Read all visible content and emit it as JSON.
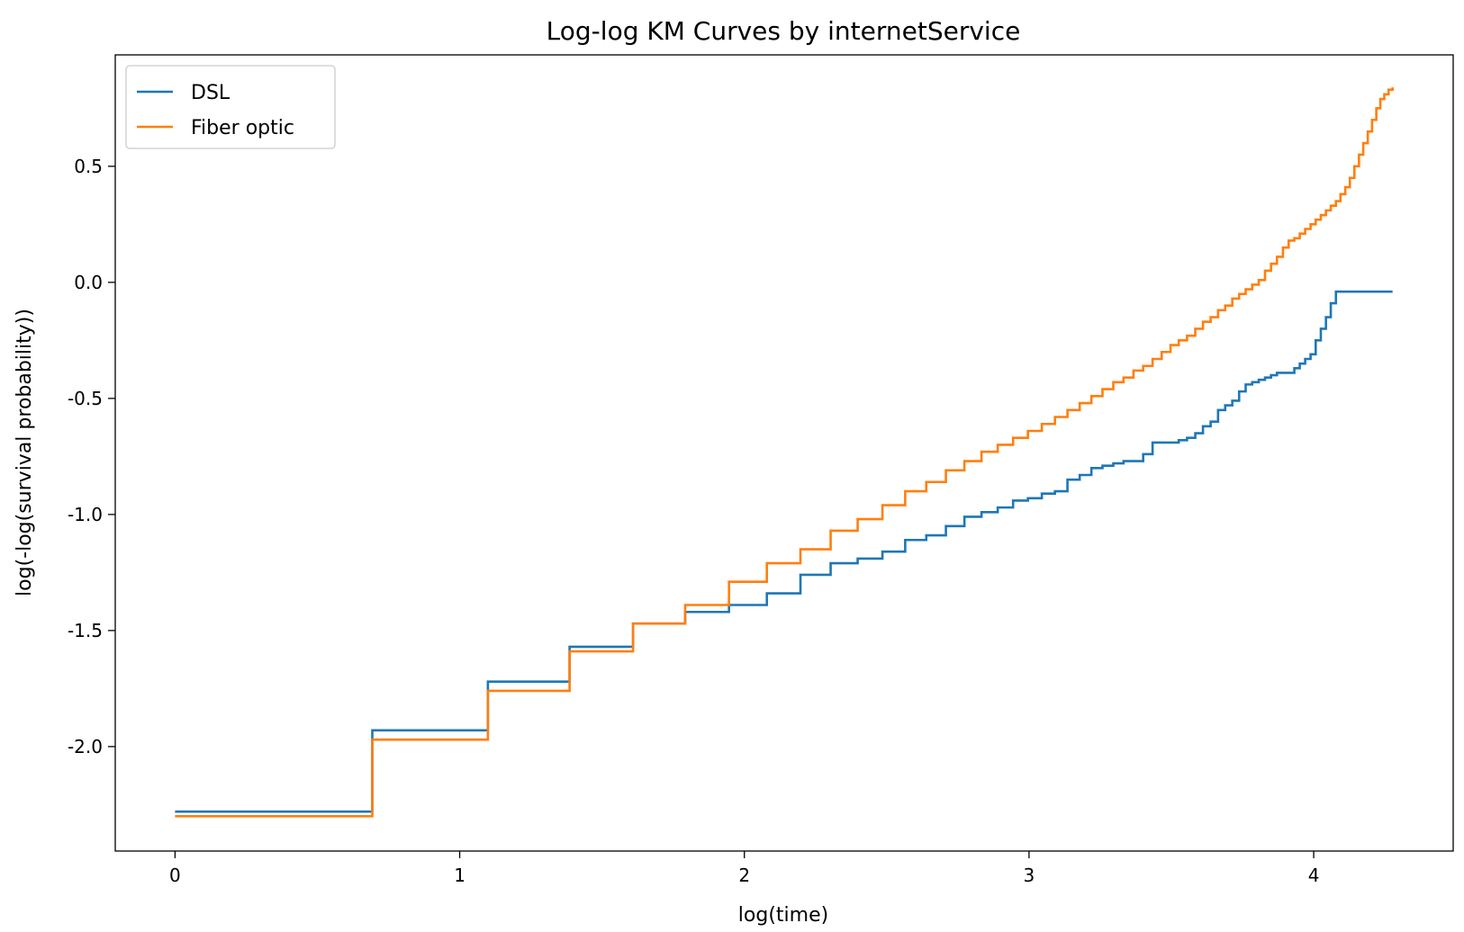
{
  "chart_data": {
    "type": "line",
    "step": "post",
    "title": "Log-log KM Curves by internetService",
    "xlabel": "log(time)",
    "ylabel": "log(-log(survival probability))",
    "xlim": [
      -0.21,
      4.49
    ],
    "ylim": [
      -2.45,
      0.98
    ],
    "x_ticks": [
      0,
      1,
      2,
      3,
      4
    ],
    "x_tick_labels": [
      "0",
      "1",
      "2",
      "3",
      "4"
    ],
    "y_ticks": [
      -2.0,
      -1.5,
      -1.0,
      -0.5,
      0.0,
      0.5
    ],
    "y_tick_labels": [
      "-2.0",
      "-1.5",
      "-1.0",
      "-0.5",
      "0.0",
      "0.5"
    ],
    "grid": false,
    "legend_position": "upper-left",
    "series": [
      {
        "name": "DSL",
        "color": "#1f77b4",
        "x": [
          0,
          0.693,
          1.099,
          1.386,
          1.609,
          1.792,
          1.946,
          2.079,
          2.197,
          2.303,
          2.398,
          2.485,
          2.565,
          2.639,
          2.708,
          2.773,
          2.833,
          2.89,
          2.944,
          2.996,
          3.045,
          3.091,
          3.135,
          3.178,
          3.219,
          3.258,
          3.296,
          3.332,
          3.367,
          3.401,
          3.434,
          3.466,
          3.497,
          3.526,
          3.555,
          3.584,
          3.611,
          3.638,
          3.664,
          3.689,
          3.714,
          3.738,
          3.761,
          3.784,
          3.807,
          3.829,
          3.85,
          3.871,
          3.892,
          3.912,
          3.932,
          3.951,
          3.97,
          3.989,
          4.007,
          4.025,
          4.043,
          4.06,
          4.078,
          4.094,
          4.111,
          4.127,
          4.143,
          4.159,
          4.174,
          4.19,
          4.205,
          4.22,
          4.234,
          4.248,
          4.263,
          4.277
        ],
        "y": [
          -2.28,
          -1.93,
          -1.72,
          -1.57,
          -1.47,
          -1.42,
          -1.39,
          -1.34,
          -1.26,
          -1.21,
          -1.19,
          -1.16,
          -1.11,
          -1.09,
          -1.05,
          -1.01,
          -0.99,
          -0.97,
          -0.94,
          -0.93,
          -0.91,
          -0.9,
          -0.85,
          -0.83,
          -0.8,
          -0.79,
          -0.78,
          -0.77,
          -0.77,
          -0.74,
          -0.69,
          -0.69,
          -0.69,
          -0.68,
          -0.67,
          -0.65,
          -0.62,
          -0.6,
          -0.55,
          -0.53,
          -0.51,
          -0.47,
          -0.44,
          -0.43,
          -0.42,
          -0.41,
          -0.4,
          -0.39,
          -0.39,
          -0.39,
          -0.37,
          -0.35,
          -0.33,
          -0.31,
          -0.25,
          -0.2,
          -0.15,
          -0.09,
          -0.04,
          -0.04,
          -0.04,
          -0.04,
          -0.04,
          -0.04,
          -0.04,
          -0.04,
          -0.04,
          -0.04,
          -0.04,
          -0.04,
          -0.04,
          -0.04
        ]
      },
      {
        "name": "Fiber optic",
        "color": "#ff7f0e",
        "x": [
          0,
          0.693,
          1.099,
          1.386,
          1.609,
          1.792,
          1.946,
          2.079,
          2.197,
          2.303,
          2.398,
          2.485,
          2.565,
          2.639,
          2.708,
          2.773,
          2.833,
          2.89,
          2.944,
          2.996,
          3.045,
          3.091,
          3.135,
          3.178,
          3.219,
          3.258,
          3.296,
          3.332,
          3.367,
          3.401,
          3.434,
          3.466,
          3.497,
          3.526,
          3.555,
          3.584,
          3.611,
          3.638,
          3.664,
          3.689,
          3.714,
          3.738,
          3.761,
          3.784,
          3.807,
          3.829,
          3.85,
          3.871,
          3.892,
          3.912,
          3.932,
          3.951,
          3.97,
          3.989,
          4.007,
          4.025,
          4.043,
          4.06,
          4.078,
          4.094,
          4.111,
          4.127,
          4.143,
          4.159,
          4.174,
          4.19,
          4.205,
          4.22,
          4.234,
          4.248,
          4.263,
          4.277
        ],
        "y": [
          -2.3,
          -1.97,
          -1.76,
          -1.59,
          -1.47,
          -1.39,
          -1.29,
          -1.21,
          -1.15,
          -1.07,
          -1.02,
          -0.96,
          -0.9,
          -0.86,
          -0.81,
          -0.77,
          -0.73,
          -0.7,
          -0.67,
          -0.64,
          -0.61,
          -0.58,
          -0.55,
          -0.52,
          -0.49,
          -0.46,
          -0.43,
          -0.41,
          -0.38,
          -0.36,
          -0.33,
          -0.3,
          -0.27,
          -0.25,
          -0.23,
          -0.2,
          -0.17,
          -0.15,
          -0.12,
          -0.1,
          -0.07,
          -0.05,
          -0.03,
          -0.01,
          0.01,
          0.05,
          0.08,
          0.11,
          0.15,
          0.18,
          0.19,
          0.21,
          0.23,
          0.25,
          0.27,
          0.29,
          0.31,
          0.33,
          0.35,
          0.38,
          0.41,
          0.45,
          0.5,
          0.55,
          0.6,
          0.65,
          0.7,
          0.75,
          0.79,
          0.81,
          0.83,
          0.84
        ]
      }
    ]
  }
}
